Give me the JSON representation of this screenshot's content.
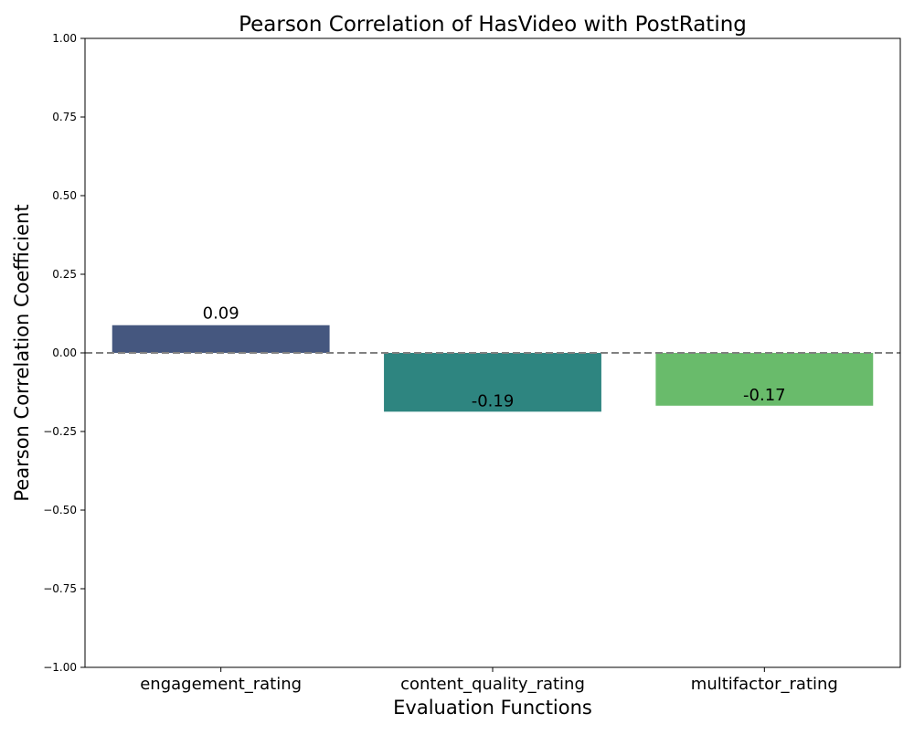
{
  "chart_data": {
    "type": "bar",
    "title": "Pearson Correlation of HasVideo with PostRating",
    "xlabel": "Evaluation Functions",
    "ylabel": "Pearson Correlation Coefficient",
    "categories": [
      "engagement_rating",
      "content_quality_rating",
      "multifactor_rating"
    ],
    "values": [
      0.088,
      -0.187,
      -0.168
    ],
    "value_labels": [
      "0.09",
      "-0.19",
      "-0.17"
    ],
    "colors": [
      "#45577f",
      "#2e8580",
      "#69bb6b"
    ],
    "ylim": [
      -1.0,
      1.0
    ],
    "yticks": [
      -1.0,
      -0.75,
      -0.5,
      -0.25,
      0.0,
      0.25,
      0.5,
      0.75,
      1.0
    ],
    "ytick_labels": [
      "−1.00",
      "−0.75",
      "−0.50",
      "−0.25",
      "0.00",
      "0.25",
      "0.50",
      "0.75",
      "1.00"
    ],
    "reference_line": {
      "y": 0,
      "style": "dashed",
      "color": "#808080"
    },
    "grid": false,
    "legend": "none"
  }
}
